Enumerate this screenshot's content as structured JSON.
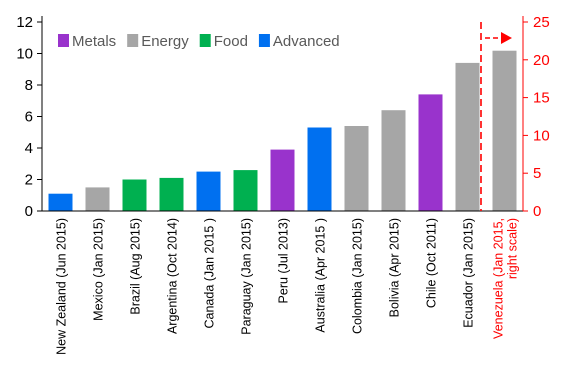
{
  "chart_data": {
    "type": "bar",
    "title": "",
    "xlabel": "",
    "ylabel": "",
    "ylim_left": [
      0,
      12
    ],
    "yticks_left": [
      0,
      2,
      4,
      6,
      8,
      10,
      12
    ],
    "ylim_right": [
      0,
      25
    ],
    "yticks_right": [
      0,
      5,
      10,
      15,
      20,
      25
    ],
    "grid": false,
    "legend": {
      "position": "top-left",
      "entries": [
        {
          "name": "Metals",
          "color": "#9933cc"
        },
        {
          "name": "Energy",
          "color": "#a6a6a6"
        },
        {
          "name": "Food",
          "color": "#00b050"
        },
        {
          "name": "Advanced",
          "color": "#0070f0"
        }
      ]
    },
    "categories": [
      "New Zealand (Jun 2015)",
      "Mexico (Jan 2015)",
      "Brazil (Aug 2015)",
      "Argentina (Oct 2014)",
      "Canada (Jan 2015 )",
      "Paraguay (Jan 2015)",
      "Peru (Jul 2013)",
      "Australia (Apr 2015 )",
      "Colombia (Jan 2015)",
      "Bolivia (Apr 2015)",
      "Chile (Oct 2011)",
      "Ecuador (Jan 2015)",
      "Venezuela (Jan 2015, right scale)"
    ],
    "category_lines": [
      [
        "New Zealand (Jun 2015)"
      ],
      [
        "Mexico (Jan 2015)"
      ],
      [
        "Brazil (Aug 2015)"
      ],
      [
        "Argentina (Oct 2014)"
      ],
      [
        "Canada (Jan 2015 )"
      ],
      [
        "Paraguay (Jan 2015)"
      ],
      [
        "Peru (Jul 2013)"
      ],
      [
        "Australia (Apr 2015 )"
      ],
      [
        "Colombia (Jan 2015)"
      ],
      [
        "Bolivia (Apr 2015)"
      ],
      [
        "Chile (Oct 2011)"
      ],
      [
        "Ecuador (Jan 2015)"
      ],
      [
        "Venezuela (Jan 2015,",
        "right scale)"
      ]
    ],
    "groups": [
      "Advanced",
      "Energy",
      "Food",
      "Food",
      "Advanced",
      "Food",
      "Metals",
      "Advanced",
      "Energy",
      "Energy",
      "Metals",
      "Energy",
      "Energy"
    ],
    "axis": [
      "left",
      "left",
      "left",
      "left",
      "left",
      "left",
      "left",
      "left",
      "left",
      "left",
      "left",
      "left",
      "right"
    ],
    "values": [
      1.1,
      1.5,
      2.0,
      2.1,
      2.5,
      2.6,
      3.9,
      5.3,
      5.4,
      6.4,
      7.4,
      9.4,
      21.2
    ],
    "right_axis_color": "#ff0000",
    "highlight_color": "#ff0000"
  }
}
